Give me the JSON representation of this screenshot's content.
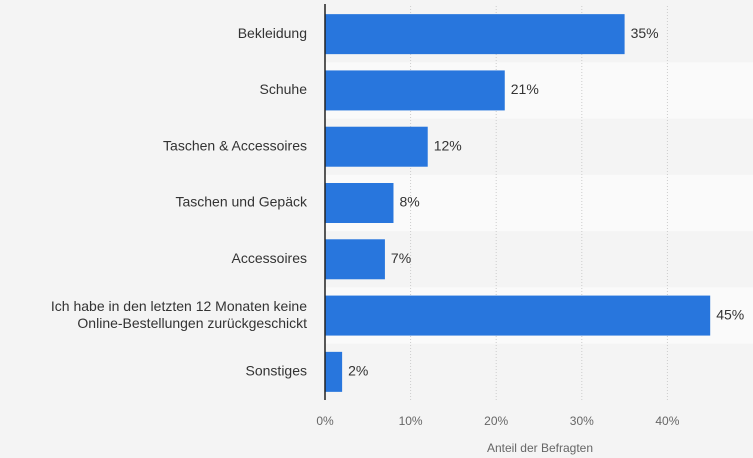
{
  "chart_data": {
    "type": "bar",
    "orientation": "horizontal",
    "categories": [
      "Bekleidung",
      "Schuhe",
      "Taschen & Accessoires",
      "Taschen und Gepäck",
      "Accessoires",
      "Ich habe in den letzten 12 Monaten keine\nOnline-Bestellungen zurückgeschickt",
      "Sonstiges"
    ],
    "values": [
      35,
      21,
      12,
      8,
      7,
      45,
      2
    ],
    "value_labels": [
      "35%",
      "21%",
      "12%",
      "8%",
      "7%",
      "45%",
      "2%"
    ],
    "color": "#2876dd",
    "x_label": "Anteil der Befragten",
    "xlim": [
      0,
      50
    ],
    "xticks": [
      {
        "value": 0,
        "label": "0%"
      },
      {
        "value": 10,
        "label": "10%"
      },
      {
        "value": 20,
        "label": "20%"
      },
      {
        "value": 30,
        "label": "30%"
      },
      {
        "value": 40,
        "label": "40%"
      }
    ],
    "grid": true
  }
}
